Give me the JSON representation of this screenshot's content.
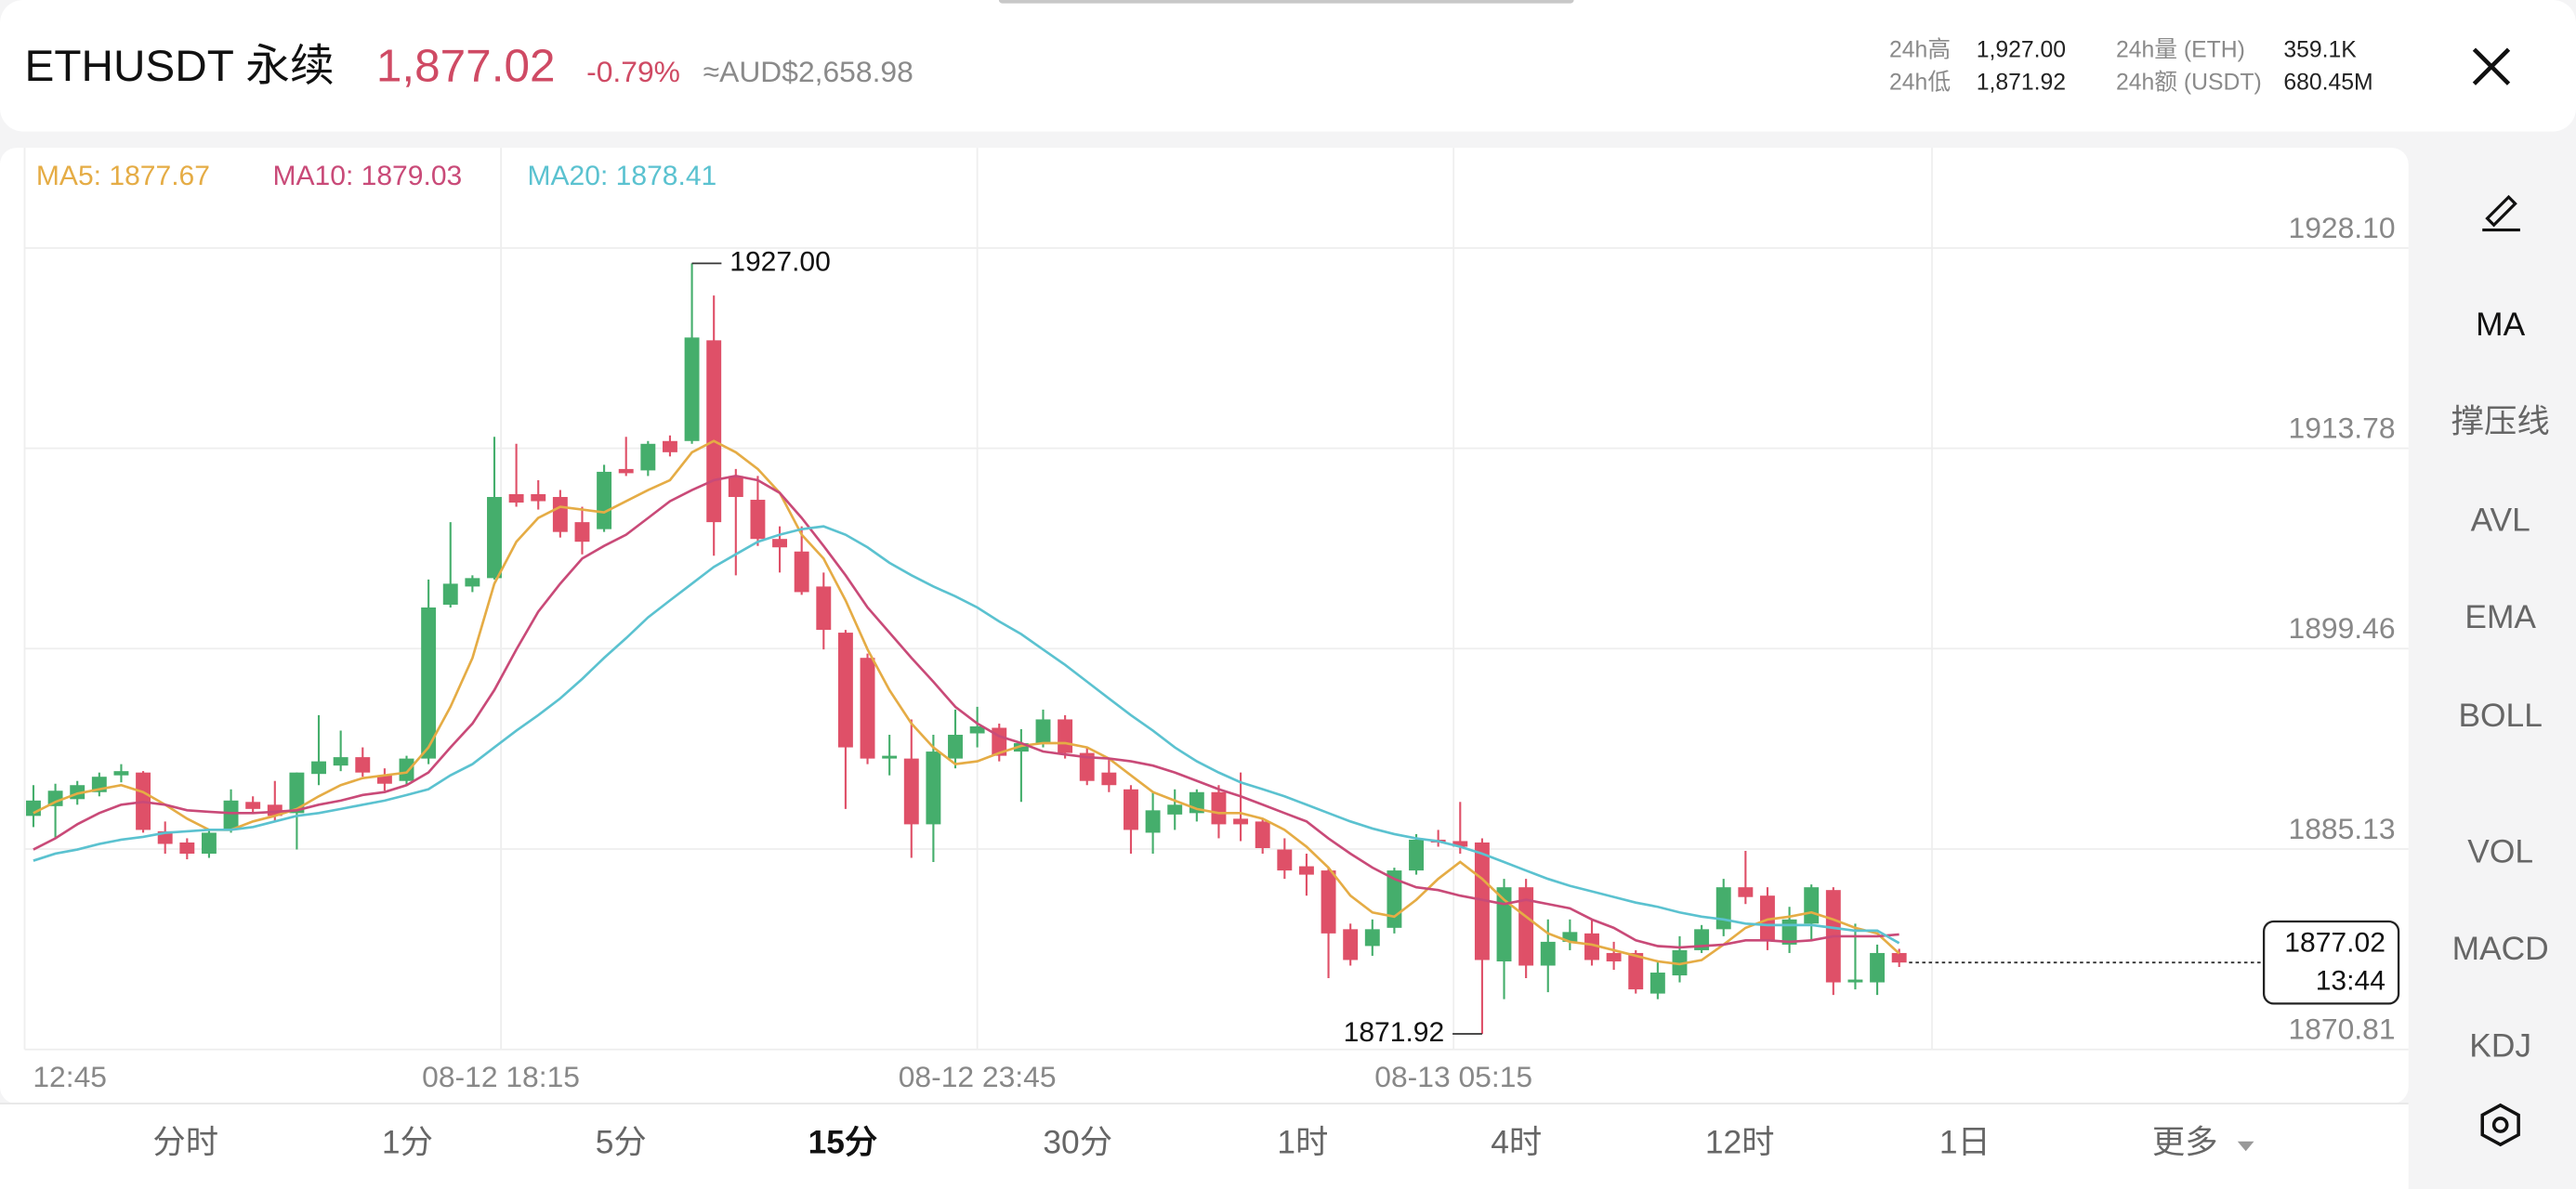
{
  "header": {
    "symbol": "ETHUSDT 永续",
    "price": "1,877.02",
    "change": "-0.79%",
    "conversion": "≈AUD$2,658.98",
    "stats": [
      {
        "label": "24h高",
        "value": "1,927.00"
      },
      {
        "label": "24h低",
        "value": "1,871.92"
      },
      {
        "label": "24h量 (ETH)",
        "value": "359.1K"
      },
      {
        "label": "24h额 (USDT)",
        "value": "680.45M"
      }
    ]
  },
  "chart_data": {
    "type": "candlestick",
    "up_color": "#45ae6c",
    "down_color": "#df5068",
    "x": [
      0,
      1,
      2,
      3,
      4,
      5,
      6,
      7,
      8,
      9,
      10,
      11,
      12,
      13,
      14,
      15,
      16,
      17,
      18,
      19,
      20,
      21,
      22,
      23,
      24,
      25,
      26,
      27,
      28,
      29,
      30,
      31,
      32,
      33,
      34,
      35,
      36,
      37,
      38,
      39,
      40,
      41,
      42,
      43,
      44,
      45,
      46,
      47,
      48,
      49,
      50,
      51,
      52,
      53,
      54,
      55,
      56,
      57,
      58,
      59,
      60,
      61,
      62,
      63,
      64,
      65,
      66,
      67,
      68,
      69,
      70,
      71,
      72,
      73,
      74,
      75,
      76,
      77,
      78,
      79,
      80,
      81,
      82,
      83,
      84,
      85
    ],
    "open": [
      1887.5,
      1888.2,
      1888.7,
      1889.2,
      1890.4,
      1890.6,
      1886.4,
      1885.6,
      1884.8,
      1886.5,
      1888.5,
      1888.3,
      1887.7,
      1890.5,
      1891.1,
      1891.7,
      1890.4,
      1890.0,
      1891.6,
      1902.6,
      1903.9,
      1904.5,
      1910.5,
      1910.5,
      1910.3,
      1908.5,
      1908.0,
      1912.3,
      1912.2,
      1914.3,
      1914.3,
      1921.5,
      1911.8,
      1910.1,
      1907.3,
      1906.4,
      1903.9,
      1900.6,
      1898.8,
      1891.6,
      1891.6,
      1886.9,
      1891.6,
      1893.4,
      1893.8,
      1892.1,
      1892.7,
      1894.4,
      1892.0,
      1890.6,
      1889.4,
      1886.3,
      1887.6,
      1887.7,
      1889.2,
      1887.3,
      1887.1,
      1885.1,
      1883.9,
      1883.6,
      1879.4,
      1878.2,
      1879.5,
      1883.6,
      1885.8,
      1885.7,
      1885.6,
      1877.1,
      1882.4,
      1876.8,
      1878.5,
      1879.1,
      1877.7,
      1877.7,
      1874.8,
      1876.1,
      1877.9,
      1879.4,
      1882.4,
      1881.8,
      1878.3,
      1879.8,
      1882.2,
      1875.6,
      1875.6,
      1877.7
    ],
    "high": [
      1889.7,
      1889.8,
      1890.0,
      1890.6,
      1891.2,
      1890.7,
      1887.1,
      1885.9,
      1886.5,
      1889.4,
      1888.9,
      1890.0,
      1890.6,
      1894.7,
      1893.6,
      1892.4,
      1890.9,
      1891.8,
      1904.4,
      1908.5,
      1904.7,
      1914.6,
      1914.1,
      1911.5,
      1910.8,
      1909.6,
      1912.6,
      1914.6,
      1914.3,
      1914.7,
      1927.0,
      1924.7,
      1912.3,
      1911.8,
      1908.2,
      1908.2,
      1904.9,
      1900.8,
      1899.1,
      1893.3,
      1894.4,
      1893.3,
      1895.1,
      1895.3,
      1894.1,
      1893.7,
      1895.1,
      1894.7,
      1892.4,
      1891.6,
      1889.7,
      1889.2,
      1889.4,
      1889.4,
      1889.7,
      1890.6,
      1887.3,
      1885.9,
      1884.8,
      1883.8,
      1879.8,
      1880.1,
      1883.8,
      1886.2,
      1886.5,
      1888.5,
      1885.9,
      1883.0,
      1883.0,
      1880.1,
      1880.1,
      1880.1,
      1878.5,
      1877.9,
      1877.1,
      1878.9,
      1879.7,
      1883.0,
      1885.0,
      1882.4,
      1881.0,
      1882.6,
      1882.4,
      1879.8,
      1878.3,
      1878.0
    ],
    "low": [
      1886.7,
      1885.9,
      1888.3,
      1888.9,
      1889.9,
      1886.3,
      1884.8,
      1884.4,
      1884.5,
      1886.3,
      1887.7,
      1887.1,
      1885.1,
      1889.7,
      1890.7,
      1890.3,
      1889.3,
      1889.7,
      1891.2,
      1902.4,
      1903.5,
      1904.4,
      1909.6,
      1909.4,
      1907.4,
      1906.2,
      1907.8,
      1911.8,
      1911.8,
      1913.2,
      1914.1,
      1906.1,
      1904.7,
      1906.8,
      1904.9,
      1903.3,
      1899.4,
      1888.0,
      1891.2,
      1890.4,
      1884.5,
      1884.2,
      1890.9,
      1892.4,
      1891.4,
      1888.5,
      1892.4,
      1891.6,
      1889.7,
      1889.2,
      1884.8,
      1884.8,
      1886.5,
      1887.1,
      1885.9,
      1885.7,
      1884.8,
      1883.0,
      1881.8,
      1875.9,
      1876.8,
      1877.5,
      1879.1,
      1883.3,
      1885.3,
      1884.8,
      1871.92,
      1874.4,
      1875.9,
      1874.9,
      1877.9,
      1876.8,
      1876.5,
      1874.8,
      1874.4,
      1875.6,
      1877.7,
      1878.9,
      1881.2,
      1877.9,
      1877.7,
      1878.6,
      1874.7,
      1875.1,
      1874.7,
      1876.7
    ],
    "close": [
      1888.6,
      1889.3,
      1889.7,
      1890.3,
      1890.7,
      1886.5,
      1885.5,
      1884.8,
      1886.3,
      1888.6,
      1888.0,
      1887.5,
      1890.6,
      1891.4,
      1891.7,
      1890.6,
      1889.8,
      1891.6,
      1902.4,
      1904.1,
      1904.5,
      1910.3,
      1909.9,
      1910.0,
      1907.8,
      1907.1,
      1912.1,
      1912.0,
      1914.1,
      1913.5,
      1921.7,
      1908.5,
      1910.3,
      1907.3,
      1906.7,
      1903.5,
      1900.8,
      1892.4,
      1891.6,
      1891.8,
      1886.9,
      1892.1,
      1893.3,
      1893.9,
      1891.8,
      1892.7,
      1894.4,
      1892.0,
      1890.0,
      1889.7,
      1886.5,
      1887.9,
      1888.3,
      1889.2,
      1886.9,
      1886.9,
      1885.2,
      1883.6,
      1883.3,
      1879.1,
      1877.2,
      1879.4,
      1883.6,
      1885.8,
      1885.6,
      1885.3,
      1877.2,
      1882.4,
      1876.8,
      1878.5,
      1879.2,
      1877.2,
      1877.1,
      1875.1,
      1876.3,
      1877.9,
      1879.4,
      1882.4,
      1881.7,
      1878.6,
      1880.1,
      1882.4,
      1875.6,
      1875.8,
      1877.7,
      1877.02
    ],
    "series": [
      {
        "name": "MA5: 1877.67",
        "color": "#e5ac45",
        "values": [
          1887.7,
          1888.5,
          1889.1,
          1889.4,
          1889.7,
          1889.2,
          1888.3,
          1887.3,
          1886.5,
          1886.5,
          1887.1,
          1887.5,
          1888.0,
          1888.9,
          1889.7,
          1890.2,
          1890.4,
          1890.6,
          1892.4,
          1895.3,
          1898.8,
          1904.1,
          1907.1,
          1908.8,
          1909.6,
          1909.4,
          1909.2,
          1910.0,
          1910.8,
          1911.5,
          1913.5,
          1914.3,
          1913.5,
          1912.3,
          1910.6,
          1907.6,
          1905.9,
          1902.9,
          1899.4,
          1896.5,
          1894.1,
          1892.4,
          1891.2,
          1891.4,
          1892.0,
          1892.5,
          1892.7,
          1892.7,
          1892.4,
          1891.6,
          1890.4,
          1889.2,
          1888.6,
          1888.0,
          1887.7,
          1887.7,
          1887.3,
          1886.5,
          1885.3,
          1883.8,
          1881.8,
          1880.6,
          1880.3,
          1881.5,
          1883.0,
          1884.2,
          1883.0,
          1881.5,
          1880.3,
          1879.1,
          1878.5,
          1878.3,
          1877.9,
          1877.5,
          1877.1,
          1876.9,
          1877.2,
          1878.3,
          1879.5,
          1880.1,
          1880.3,
          1880.6,
          1880.1,
          1879.5,
          1879.1,
          1877.67
        ]
      },
      {
        "name": "MA10: 1879.03",
        "color": "#c94a78",
        "values": [
          1885.1,
          1885.9,
          1886.9,
          1887.7,
          1888.3,
          1888.5,
          1888.3,
          1887.9,
          1887.8,
          1887.7,
          1887.7,
          1887.8,
          1887.9,
          1888.3,
          1888.6,
          1889.0,
          1889.2,
          1889.7,
          1890.6,
          1892.4,
          1894.1,
          1896.5,
          1899.4,
          1902.1,
          1904.1,
          1905.9,
          1906.8,
          1907.6,
          1908.8,
          1910.0,
          1910.8,
          1911.5,
          1911.8,
          1911.5,
          1910.6,
          1908.8,
          1906.8,
          1904.7,
          1902.4,
          1900.6,
          1898.8,
          1897.1,
          1895.3,
          1894.1,
          1893.2,
          1892.7,
          1892.1,
          1891.9,
          1891.7,
          1891.6,
          1891.4,
          1891.1,
          1890.6,
          1890.0,
          1889.4,
          1888.9,
          1888.3,
          1887.7,
          1887.1,
          1885.9,
          1884.8,
          1883.8,
          1883.0,
          1882.4,
          1882.2,
          1881.8,
          1881.5,
          1881.2,
          1881.5,
          1881.2,
          1880.9,
          1880.1,
          1879.5,
          1878.6,
          1878.2,
          1878.1,
          1878.2,
          1878.3,
          1878.6,
          1878.6,
          1878.5,
          1878.6,
          1878.9,
          1878.9,
          1878.9,
          1879.03
        ]
      },
      {
        "name": "MA20: 1878.41",
        "color": "#5bc2d0",
        "values": [
          1884.3,
          1884.8,
          1885.1,
          1885.5,
          1885.8,
          1886.0,
          1886.3,
          1886.4,
          1886.5,
          1886.5,
          1886.7,
          1887.1,
          1887.5,
          1887.7,
          1888.0,
          1888.3,
          1888.6,
          1889.0,
          1889.4,
          1890.4,
          1891.2,
          1892.4,
          1893.6,
          1894.7,
          1895.9,
          1897.3,
          1898.8,
          1900.2,
          1901.7,
          1902.9,
          1904.1,
          1905.3,
          1906.2,
          1907.1,
          1907.6,
          1908.0,
          1908.2,
          1907.6,
          1906.7,
          1905.6,
          1904.7,
          1903.9,
          1903.2,
          1902.4,
          1901.4,
          1900.5,
          1899.4,
          1898.3,
          1897.1,
          1895.9,
          1894.7,
          1893.6,
          1892.4,
          1891.4,
          1890.6,
          1889.9,
          1889.4,
          1888.9,
          1888.3,
          1887.7,
          1887.1,
          1886.6,
          1886.2,
          1885.9,
          1885.7,
          1885.3,
          1884.8,
          1884.2,
          1883.6,
          1883.0,
          1882.5,
          1882.1,
          1881.7,
          1881.3,
          1881.0,
          1880.6,
          1880.3,
          1880.1,
          1879.8,
          1879.7,
          1879.7,
          1879.7,
          1879.5,
          1879.3,
          1879.3,
          1878.41
        ]
      }
    ],
    "xlim": [
      -0.4,
      108.2
    ],
    "xticks": [
      {
        "value": -0.4,
        "label": "12:45"
      },
      {
        "value": 21.3,
        "label": "08-12 18:15"
      },
      {
        "value": 43.0,
        "label": "08-12 23:45"
      },
      {
        "value": 64.7,
        "label": "08-13 05:15"
      }
    ],
    "ylim": [
      1870.81,
      1935.26
    ],
    "yticks": [
      {
        "value": 1870.81,
        "label": "1870.81"
      },
      {
        "value": 1885.13,
        "label": "1885.13"
      },
      {
        "value": 1899.46,
        "label": "1899.46"
      },
      {
        "value": 1913.78,
        "label": "1913.78"
      },
      {
        "value": 1928.1,
        "label": "1928.10"
      }
    ],
    "grid": true,
    "annotations": [
      {
        "index": 30,
        "value": 1927,
        "label": "1927.00",
        "side": "right"
      },
      {
        "index": 66,
        "value": 1871.92,
        "label": "1871.92",
        "side": "left"
      }
    ],
    "last_price": {
      "value": 1877.02,
      "label": "1877.02",
      "countdown": "13:44"
    }
  },
  "toolbar": [
    "MA",
    "撑压线",
    "AVL",
    "EMA",
    "BOLL",
    "VOL",
    "MACD",
    "KDJ"
  ],
  "timeframes": [
    "分时",
    "1分",
    "5分",
    "15分",
    "30分",
    "1时",
    "4时",
    "12时",
    "1日",
    "更多"
  ],
  "active_timeframe": 3
}
